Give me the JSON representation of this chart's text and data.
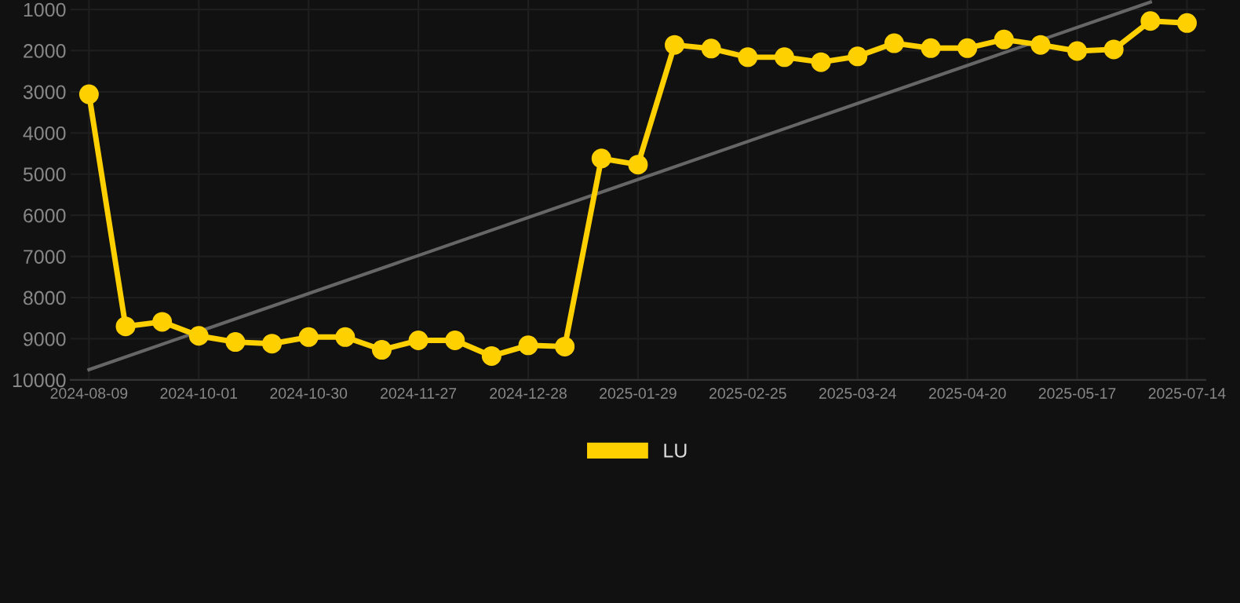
{
  "chart_data": {
    "type": "line",
    "categories": [
      "2024-08-09",
      null,
      null,
      "2024-10-01",
      null,
      null,
      "2024-10-30",
      null,
      null,
      "2024-11-27",
      null,
      null,
      "2024-12-28",
      null,
      null,
      "2025-01-29",
      null,
      null,
      "2025-02-25",
      null,
      null,
      "2025-03-24",
      null,
      null,
      "2025-04-20",
      null,
      null,
      "2025-05-17",
      null,
      null,
      "2025-07-14"
    ],
    "series": [
      {
        "name": "LU",
        "color": "#ffd000",
        "marker": "circle",
        "values": [
          3060,
          8700,
          8590,
          8930,
          9080,
          9120,
          8960,
          8960,
          9270,
          9040,
          9040,
          9420,
          9160,
          9190,
          4620,
          4770,
          1860,
          1950,
          2160,
          2160,
          2280,
          2140,
          1820,
          1940,
          1940,
          1730,
          1860,
          2010,
          1970,
          1280,
          1330
        ]
      },
      {
        "color": "#666666",
        "marker": "none",
        "values": [
          9750,
          null,
          null,
          null,
          null,
          null,
          null,
          null,
          null,
          null,
          null,
          null,
          null,
          null,
          null,
          null,
          null,
          null,
          null,
          null,
          null,
          null,
          null,
          null,
          null,
          null,
          null,
          null,
          null,
          820,
          null
        ]
      }
    ],
    "ylim": [
      10000,
      770
    ],
    "yticks": [
      1000,
      2000,
      3000,
      4000,
      5000,
      6000,
      7000,
      8000,
      9000,
      10000
    ],
    "grid": true,
    "legend": "bottom"
  }
}
